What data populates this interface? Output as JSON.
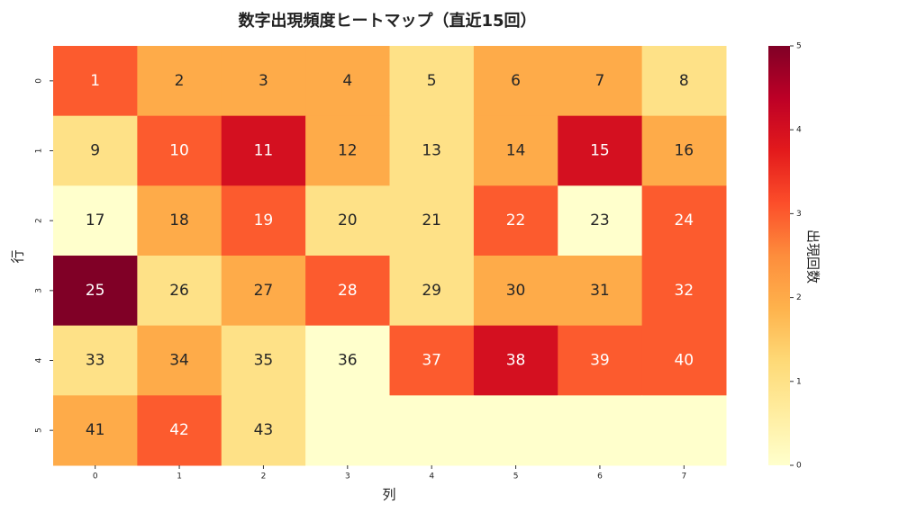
{
  "chart_data": {
    "type": "heatmap",
    "title": "数字出現頻度ヒートマップ（直近15回）",
    "xlabel": "列",
    "ylabel": "行",
    "x": [
      0,
      1,
      2,
      3,
      4,
      5,
      6,
      7
    ],
    "y": [
      0,
      1,
      2,
      3,
      4,
      5
    ],
    "values": [
      [
        3,
        2,
        2,
        2,
        1,
        2,
        2,
        1
      ],
      [
        1,
        3,
        4,
        2,
        1,
        2,
        4,
        2
      ],
      [
        0,
        2,
        3,
        1,
        1,
        3,
        0,
        3
      ],
      [
        5,
        1,
        2,
        3,
        1,
        2,
        2,
        3
      ],
      [
        1,
        2,
        1,
        0,
        3,
        4,
        3,
        3
      ],
      [
        2,
        3,
        1,
        0,
        0,
        0,
        0,
        0
      ]
    ],
    "annotations": [
      [
        1,
        2,
        3,
        4,
        5,
        6,
        7,
        8
      ],
      [
        9,
        10,
        11,
        12,
        13,
        14,
        15,
        16
      ],
      [
        17,
        18,
        19,
        20,
        21,
        22,
        23,
        24
      ],
      [
        25,
        26,
        27,
        28,
        29,
        30,
        31,
        32
      ],
      [
        33,
        34,
        35,
        36,
        37,
        38,
        39,
        40
      ],
      [
        41,
        42,
        43,
        null,
        null,
        null,
        null,
        null
      ]
    ],
    "colormap": [
      "#ffffcc",
      "#ffeda0",
      "#fed976",
      "#feb24c",
      "#fd8d3c",
      "#fc4e2a",
      "#e31a1c",
      "#bd0026",
      "#800026"
    ],
    "colorbar_label": "出現回数",
    "clim": [
      0,
      5
    ],
    "cticks": [
      0,
      1,
      2,
      3,
      4,
      5
    ]
  }
}
